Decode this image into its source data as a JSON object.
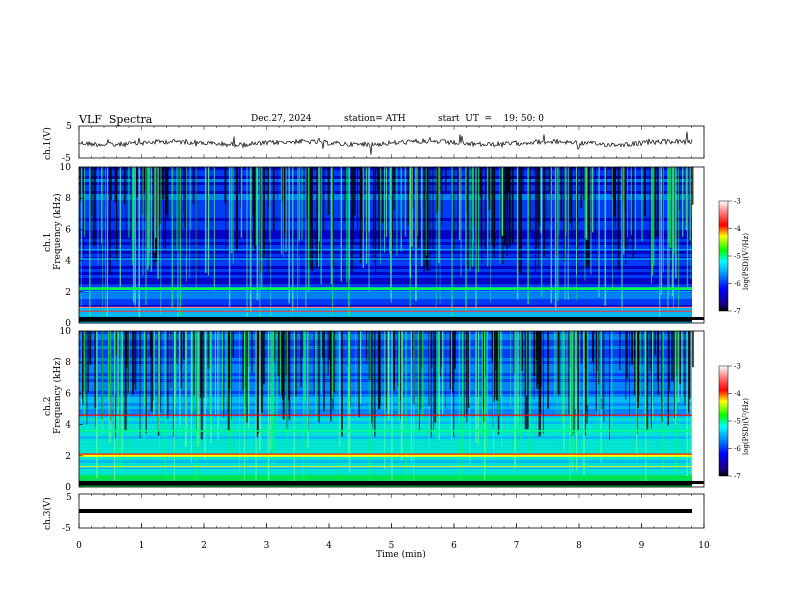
{
  "header": {
    "title": "VLF  Spectra",
    "date": "Dec.27, 2024",
    "station": "station= ATH",
    "start": "start  UT  =    19: 50: 0"
  },
  "chart_data": [
    {
      "type": "line",
      "name": "ch1-waveform",
      "ylabel": "ch.1(V)",
      "ylim": [
        -5,
        5
      ],
      "yticks": [
        "5",
        "-5"
      ],
      "xlim": [
        0,
        10
      ]
    },
    {
      "type": "heatmap",
      "name": "ch1-spectrogram",
      "ylabel_top": "ch.1",
      "ylabel": "Frequency  (kHz)",
      "ylim": [
        0,
        10
      ],
      "yticks": [
        "0",
        "2",
        "4",
        "6",
        "8",
        "10"
      ],
      "xlim": [
        0,
        10
      ],
      "colorbar": {
        "label": "log(PSD)(V²/Hz)",
        "ticks": [
          "-3",
          "-4",
          "-5",
          "-6",
          "-7"
        ],
        "range": [
          -7,
          -3
        ]
      }
    },
    {
      "type": "heatmap",
      "name": "ch2-spectrogram",
      "ylabel_top": "ch.2",
      "ylabel": "Frequency  (kHz)",
      "ylim": [
        0,
        10
      ],
      "yticks": [
        "0",
        "2",
        "4",
        "6",
        "8",
        "10"
      ],
      "xlim": [
        0,
        10
      ],
      "colorbar": {
        "label": "log(PSD)(V²/Hz)",
        "ticks": [
          "-3",
          "-4",
          "-5",
          "-6",
          "-7"
        ],
        "range": [
          -7,
          -3
        ]
      }
    },
    {
      "type": "line",
      "name": "ch3-waveform",
      "ylabel": "ch.3(V)",
      "ylim": [
        -5,
        5
      ],
      "yticks": [
        "5",
        "-5"
      ],
      "xlim": [
        0,
        10
      ],
      "xlabel": "Time  (min)",
      "xticks": [
        "0",
        "1",
        "2",
        "3",
        "4",
        "5",
        "6",
        "7",
        "8",
        "9",
        "10"
      ]
    }
  ]
}
